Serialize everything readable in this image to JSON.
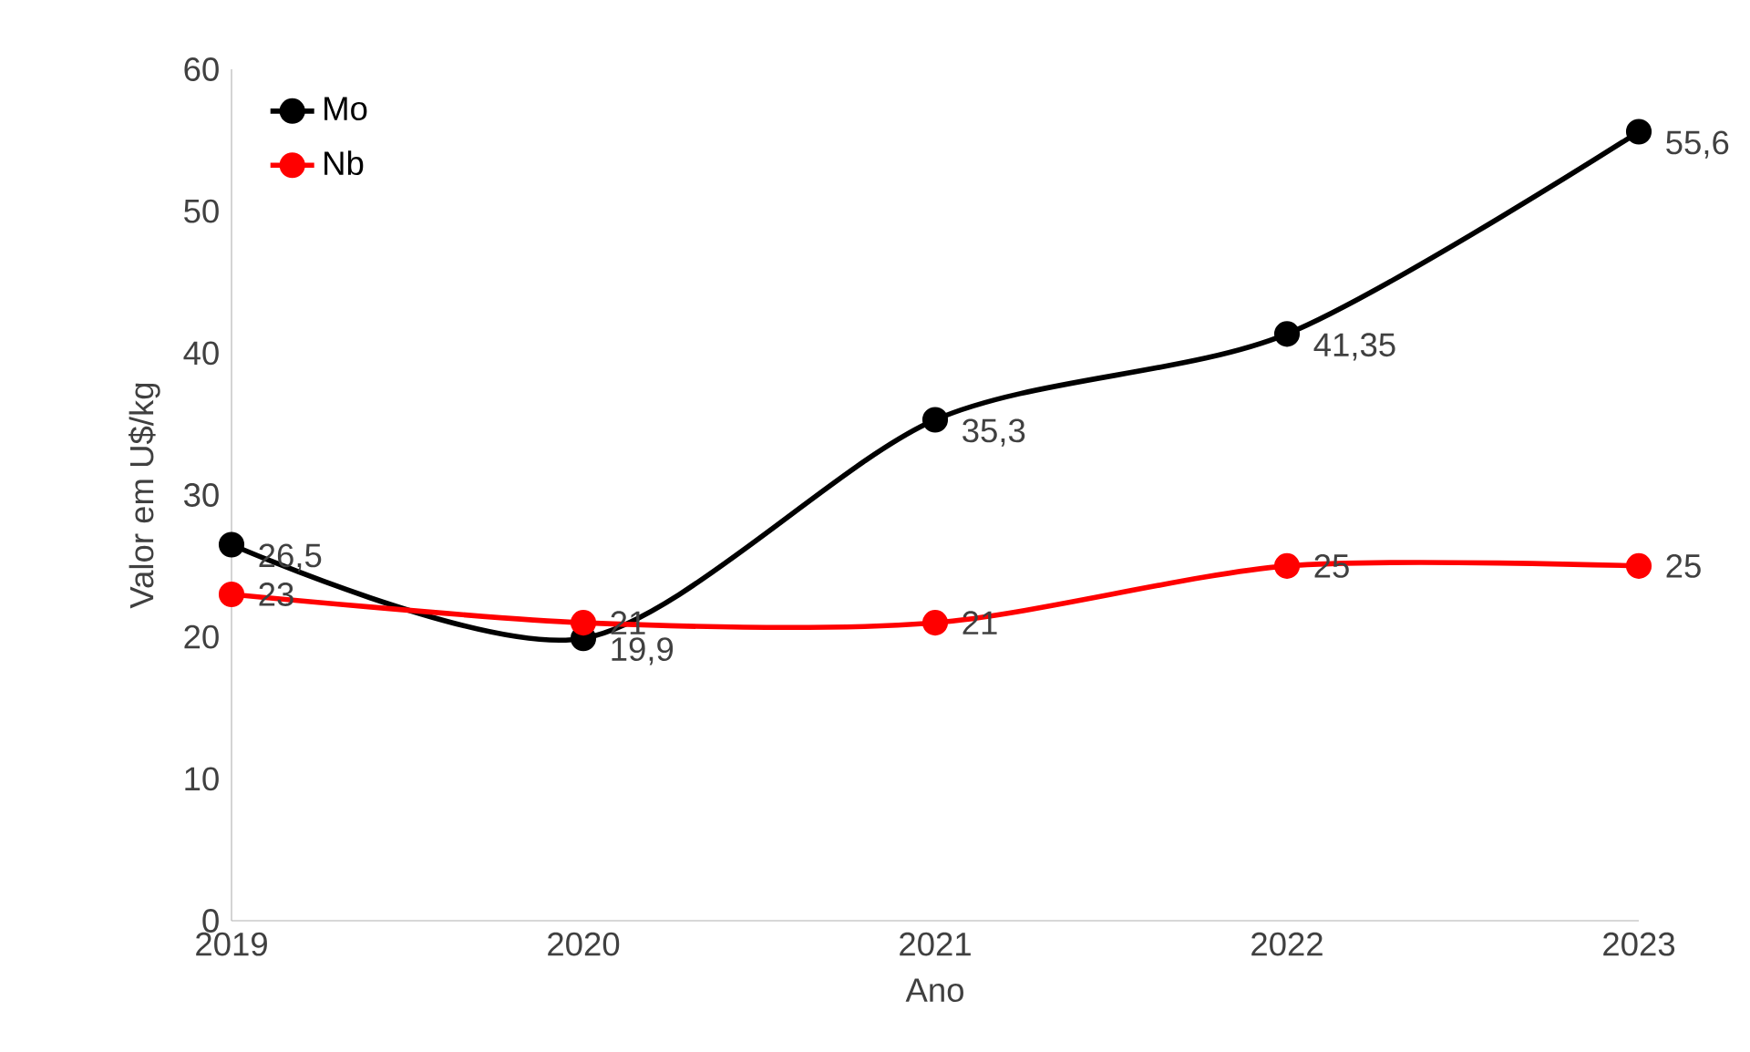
{
  "chart_data": {
    "type": "line",
    "xlabel": "Ano",
    "ylabel": "Valor em U$/kg",
    "categories": [
      "2019",
      "2020",
      "2021",
      "2022",
      "2023"
    ],
    "series": [
      {
        "name": "Mo",
        "color": "#000000",
        "values": [
          26.5,
          19.9,
          35.3,
          41.35,
          55.6
        ],
        "value_labels": [
          "26,5",
          "19,9",
          "35,3",
          "41,35",
          "55,6"
        ]
      },
      {
        "name": "Nb",
        "color": "#ff0000",
        "values": [
          23,
          21,
          21,
          25,
          25
        ],
        "value_labels": [
          "23",
          "21",
          "21",
          "25",
          "25"
        ]
      }
    ],
    "ylim": [
      0,
      60
    ],
    "yticks": [
      0,
      10,
      20,
      30,
      40,
      50,
      60
    ],
    "grid": false,
    "legend": "top left",
    "marker": "circle",
    "line_style": "solid"
  }
}
